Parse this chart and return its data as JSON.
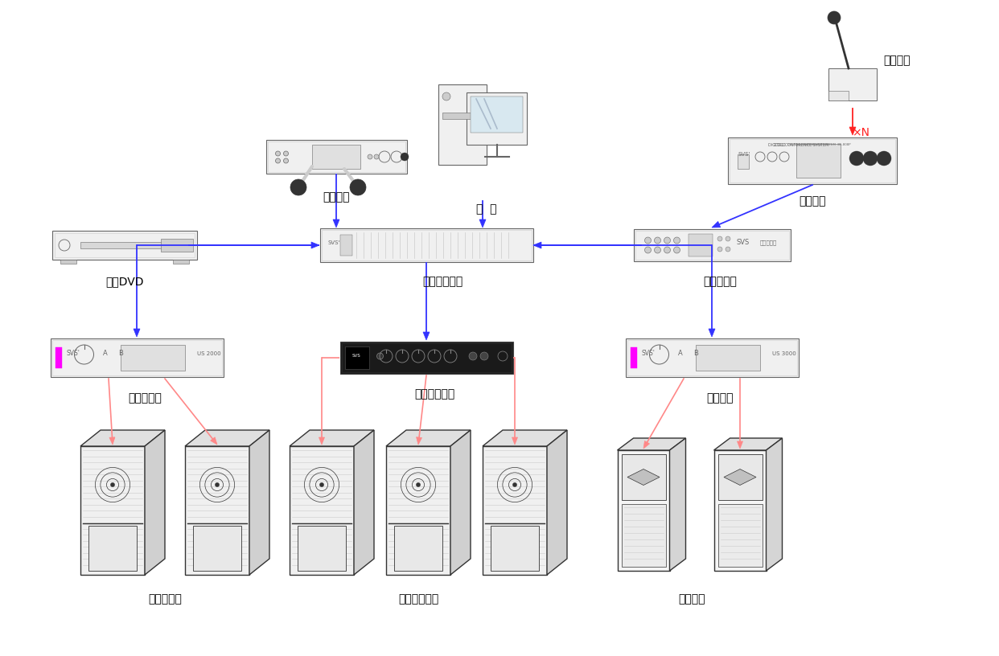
{
  "bg_color": "#ffffff",
  "blue": "#3333ff",
  "pink": "#ff8888",
  "red": "#ff2222",
  "gray": "#666666",
  "lgray": "#f0f0f0",
  "mgray": "#cccccc",
  "dgray": "#333333",
  "magenta": "#ff00ff",
  "labels": {
    "wireless_mic": "无线话筒",
    "computer": "电  脑",
    "conference_host": "会议主机",
    "speech_unit": "发言单元",
    "xN": "×N",
    "bluray_dvd": "蓝光DVD",
    "digital_matrix": "数字媒体矩阵",
    "feedback_suppressor": "反馈抑制器",
    "main_amp": "主扩声功放",
    "aux_amp": "辅助扩声功放",
    "monitor_amp": "返听功放",
    "main_speaker": "主扩声音筱",
    "aux_speaker": "辅助扩声音筱",
    "monitor_speaker": "返听音筱"
  }
}
